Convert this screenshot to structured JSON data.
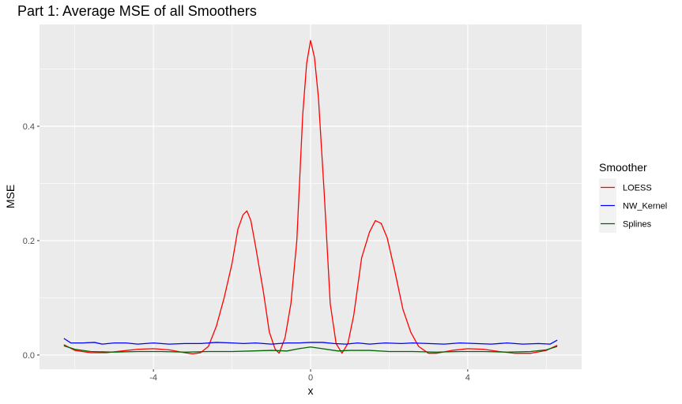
{
  "chart_data": {
    "type": "line",
    "title": "Part 1: Average MSE of all Smoothers",
    "xlabel": "x",
    "ylabel": "MSE",
    "xlim": [
      -6.9,
      6.9
    ],
    "ylim": [
      -0.025,
      0.578
    ],
    "x_ticks": [
      -4,
      0,
      4
    ],
    "x_tick_labels": [
      "-4",
      "0",
      "4"
    ],
    "y_ticks": [
      0.0,
      0.2,
      0.4
    ],
    "y_tick_labels": [
      "0.0",
      "0.2",
      "0.4"
    ],
    "grid": true,
    "legend_position": "right",
    "legend_title": "Smoother",
    "series": [
      {
        "name": "LOESS",
        "color": "#ff0000",
        "points": [
          [
            -6.28,
            0.018
          ],
          [
            -6.0,
            0.008
          ],
          [
            -5.6,
            0.004
          ],
          [
            -5.2,
            0.004
          ],
          [
            -4.8,
            0.007
          ],
          [
            -4.4,
            0.01
          ],
          [
            -4.0,
            0.011
          ],
          [
            -3.6,
            0.009
          ],
          [
            -3.2,
            0.004
          ],
          [
            -3.0,
            0.002
          ],
          [
            -2.8,
            0.004
          ],
          [
            -2.6,
            0.015
          ],
          [
            -2.4,
            0.05
          ],
          [
            -2.2,
            0.1
          ],
          [
            -2.0,
            0.16
          ],
          [
            -1.85,
            0.22
          ],
          [
            -1.72,
            0.245
          ],
          [
            -1.62,
            0.252
          ],
          [
            -1.52,
            0.235
          ],
          [
            -1.4,
            0.19
          ],
          [
            -1.2,
            0.11
          ],
          [
            -1.05,
            0.04
          ],
          [
            -0.9,
            0.01
          ],
          [
            -0.8,
            0.003
          ],
          [
            -0.65,
            0.03
          ],
          [
            -0.5,
            0.09
          ],
          [
            -0.35,
            0.2
          ],
          [
            -0.2,
            0.42
          ],
          [
            -0.1,
            0.51
          ],
          [
            0.0,
            0.55
          ],
          [
            0.1,
            0.52
          ],
          [
            0.2,
            0.45
          ],
          [
            0.35,
            0.28
          ],
          [
            0.5,
            0.09
          ],
          [
            0.65,
            0.02
          ],
          [
            0.8,
            0.003
          ],
          [
            0.95,
            0.02
          ],
          [
            1.1,
            0.07
          ],
          [
            1.3,
            0.17
          ],
          [
            1.5,
            0.215
          ],
          [
            1.65,
            0.235
          ],
          [
            1.8,
            0.23
          ],
          [
            1.95,
            0.205
          ],
          [
            2.15,
            0.145
          ],
          [
            2.35,
            0.08
          ],
          [
            2.55,
            0.04
          ],
          [
            2.75,
            0.015
          ],
          [
            3.0,
            0.003
          ],
          [
            3.2,
            0.003
          ],
          [
            3.6,
            0.008
          ],
          [
            4.0,
            0.011
          ],
          [
            4.4,
            0.01
          ],
          [
            4.8,
            0.006
          ],
          [
            5.2,
            0.003
          ],
          [
            5.6,
            0.003
          ],
          [
            6.0,
            0.008
          ],
          [
            6.28,
            0.017
          ]
        ]
      },
      {
        "name": "NW_Kernel",
        "color": "#0000ff",
        "points": [
          [
            -6.28,
            0.029
          ],
          [
            -6.1,
            0.021
          ],
          [
            -5.8,
            0.021
          ],
          [
            -5.5,
            0.022
          ],
          [
            -5.3,
            0.019
          ],
          [
            -5.0,
            0.021
          ],
          [
            -4.7,
            0.021
          ],
          [
            -4.4,
            0.019
          ],
          [
            -4.0,
            0.021
          ],
          [
            -3.6,
            0.019
          ],
          [
            -3.2,
            0.02
          ],
          [
            -2.8,
            0.02
          ],
          [
            -2.4,
            0.022
          ],
          [
            -2.0,
            0.021
          ],
          [
            -1.7,
            0.02
          ],
          [
            -1.4,
            0.021
          ],
          [
            -1.0,
            0.019
          ],
          [
            -0.6,
            0.021
          ],
          [
            -0.3,
            0.021
          ],
          [
            0.0,
            0.022
          ],
          [
            0.3,
            0.022
          ],
          [
            0.6,
            0.02
          ],
          [
            0.9,
            0.019
          ],
          [
            1.2,
            0.021
          ],
          [
            1.5,
            0.019
          ],
          [
            1.9,
            0.021
          ],
          [
            2.3,
            0.02
          ],
          [
            2.6,
            0.021
          ],
          [
            3.0,
            0.02
          ],
          [
            3.4,
            0.019
          ],
          [
            3.8,
            0.021
          ],
          [
            4.2,
            0.02
          ],
          [
            4.6,
            0.019
          ],
          [
            5.0,
            0.021
          ],
          [
            5.4,
            0.019
          ],
          [
            5.8,
            0.02
          ],
          [
            6.1,
            0.019
          ],
          [
            6.28,
            0.026
          ]
        ]
      },
      {
        "name": "Splines",
        "color": "#006400",
        "points": [
          [
            -6.28,
            0.016
          ],
          [
            -6.0,
            0.01
          ],
          [
            -5.6,
            0.006
          ],
          [
            -5.0,
            0.005
          ],
          [
            -4.4,
            0.006
          ],
          [
            -3.8,
            0.006
          ],
          [
            -3.2,
            0.005
          ],
          [
            -2.6,
            0.006
          ],
          [
            -2.0,
            0.006
          ],
          [
            -1.5,
            0.007
          ],
          [
            -1.0,
            0.008
          ],
          [
            -0.6,
            0.007
          ],
          [
            -0.3,
            0.011
          ],
          [
            0.0,
            0.014
          ],
          [
            0.3,
            0.011
          ],
          [
            0.7,
            0.007
          ],
          [
            1.0,
            0.008
          ],
          [
            1.5,
            0.008
          ],
          [
            2.0,
            0.006
          ],
          [
            2.6,
            0.006
          ],
          [
            3.2,
            0.005
          ],
          [
            3.8,
            0.006
          ],
          [
            4.4,
            0.006
          ],
          [
            5.0,
            0.005
          ],
          [
            5.6,
            0.006
          ],
          [
            6.0,
            0.009
          ],
          [
            6.28,
            0.015
          ]
        ]
      }
    ]
  }
}
